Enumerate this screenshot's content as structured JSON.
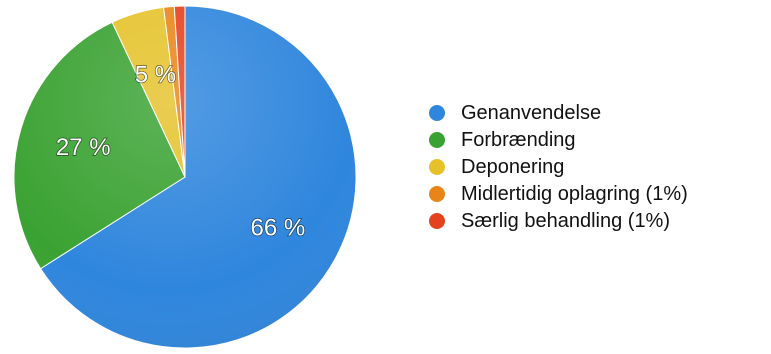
{
  "chart_data": {
    "type": "pie",
    "title": "",
    "series": [
      {
        "name": "Genanvendelse",
        "value": 66,
        "label": "66 %",
        "color": "#2f86dd"
      },
      {
        "name": "Forbrænding",
        "value": 27,
        "label": "27 %",
        "color": "#3aa232"
      },
      {
        "name": "Deponering",
        "value": 5,
        "label": "5 %",
        "color": "#e5c22a"
      },
      {
        "name": "Midlertidig oplagring (1%)",
        "value": 1,
        "label": "",
        "color": "#e98518"
      },
      {
        "name": "Særlig behandling (1%)",
        "value": 1,
        "label": "",
        "color": "#e4421f"
      }
    ],
    "legend_position": "right"
  }
}
